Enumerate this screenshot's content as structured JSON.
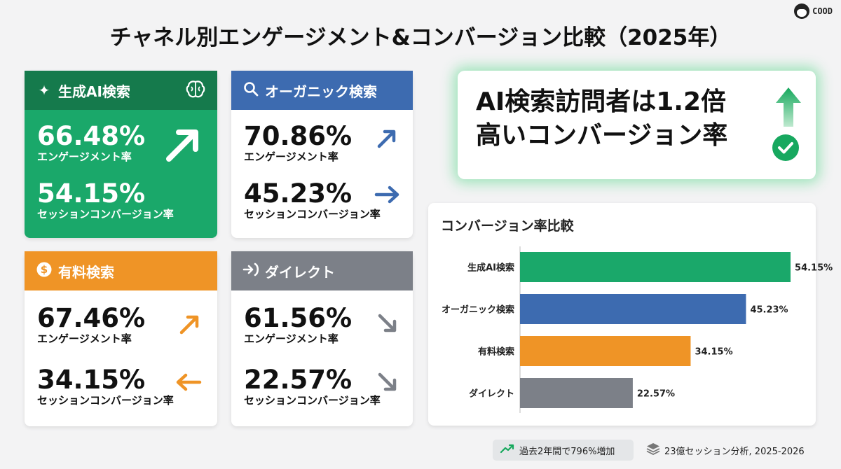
{
  "title": "チャネル別エンゲージメント&コンバージョン比較（2025年）",
  "brand": "COOD",
  "colors": {
    "ai": "#1aa86a",
    "organic": "#3d6bb0",
    "paid": "#ef9426",
    "direct": "#7c8088"
  },
  "cards": {
    "ai": {
      "name": "生成AI検索",
      "icon": "sparkle-icon",
      "engagement": "66.48%",
      "engagement_label": "エンゲージメント率",
      "conversion": "54.15%",
      "conversion_label": "セッションコンバージョン率",
      "arrow": "↗"
    },
    "organic": {
      "name": "オーガニック検索",
      "icon": "search-icon",
      "engagement": "70.86%",
      "engagement_label": "エンゲージメント率",
      "engagement_arrow": "↗",
      "conversion": "45.23%",
      "conversion_label": "セッションコンバージョン率",
      "conversion_arrow": "→"
    },
    "paid": {
      "name": "有料検索",
      "icon": "dollar-icon",
      "engagement": "67.46%",
      "engagement_label": "エンゲージメント率",
      "engagement_arrow": "↗",
      "conversion": "34.15%",
      "conversion_label": "セッションコンバージョン率",
      "conversion_arrow": "←"
    },
    "direct": {
      "name": "ダイレクト",
      "icon": "arrow-enter-icon",
      "engagement": "61.56%",
      "engagement_label": "エンゲージメント率",
      "engagement_arrow": "↘",
      "conversion": "22.57%",
      "conversion_label": "セッションコンバージョン率",
      "conversion_arrow": "↘"
    }
  },
  "callout": {
    "line1": "AI検索訪問者は1.2倍",
    "line2": "高いコンバージョン率"
  },
  "chart_data": {
    "type": "bar",
    "orientation": "horizontal",
    "title": "コンバージョン率比較",
    "categories": [
      "生成AI検索",
      "オーガニック検索",
      "有料検索",
      "ダイレクト"
    ],
    "values": [
      54.15,
      45.23,
      34.15,
      22.57
    ],
    "value_labels": [
      "54.15%",
      "45.23%",
      "34.15%",
      "22.57%"
    ],
    "colors": [
      "#1aa86a",
      "#3d6bb0",
      "#ef9426",
      "#7c8088"
    ],
    "xlim": [
      0,
      62
    ],
    "grid": false,
    "legend": "none"
  },
  "footer": {
    "growth": "過去2年間で796%増加",
    "source": "23億セッション分析, 2025-2026"
  }
}
